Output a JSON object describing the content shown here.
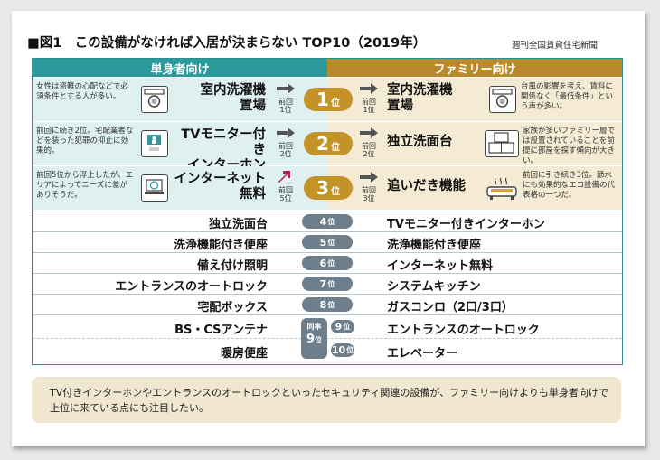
{
  "title": "■図1　この設備がなければ入居が決まらない TOP10（2019年）",
  "source": "週刊全国賃貸住宅新聞",
  "headers": {
    "single": "単身者向け",
    "family": "ファミリー向け"
  },
  "top3": [
    {
      "rank_num": "1",
      "rank_unit": "位",
      "single_note": "女性は盗難の心配などで必須条件とする人が多い。",
      "single_feature_1": "室内洗濯機",
      "single_feature_2": "置場",
      "single_prev_1": "前回",
      "single_prev_2": "1位",
      "single_trend": "same",
      "family_prev_1": "前回",
      "family_prev_2": "1位",
      "family_feature_1": "室内洗濯機",
      "family_feature_2": "置場",
      "family_note": "台風の影響を考え、賃料に関係なく「最低条件」という声が多い。",
      "single_icon": "washing-machine-icon",
      "family_icon": "washing-machine-icon"
    },
    {
      "rank_num": "2",
      "rank_unit": "位",
      "single_note": "前回に続き2位。宅配業者などを装った犯罪の抑止に効果的。",
      "single_feature_1": "TVモニター付き",
      "single_feature_2": "インターホン",
      "single_prev_1": "前回",
      "single_prev_2": "2位",
      "single_trend": "same",
      "family_prev_1": "前回",
      "family_prev_2": "2位",
      "family_feature_1": "独立洗面台",
      "family_feature_2": "",
      "family_note": "家族が多いファミリー層では設置されていることを前提に部屋を探す傾向が大きい。",
      "single_icon": "tv-intercom-icon",
      "family_icon": "vanity-icon"
    },
    {
      "rank_num": "3",
      "rank_unit": "位",
      "single_note": "前回5位から浮上したが、エリアによってニーズに差がありそうだ。",
      "single_feature_1": "インターネット",
      "single_feature_2": "無料",
      "single_prev_1": "前回",
      "single_prev_2": "5位",
      "single_trend": "up",
      "family_prev_1": "前回",
      "family_prev_2": "3位",
      "family_feature_1": "追いだき機能",
      "family_feature_2": "",
      "family_note": "前回に引き続き3位。節水にも効果的なエコ設備の代表格の一つだ。",
      "single_icon": "laptop-icon",
      "family_icon": "bathtub-icon"
    }
  ],
  "rows": [
    {
      "rank": "4",
      "unit": "位",
      "single": "独立洗面台",
      "family": "TVモニター付きインターホン"
    },
    {
      "rank": "5",
      "unit": "位",
      "single": "洗浄機能付き便座",
      "family": "洗浄機能付き便座"
    },
    {
      "rank": "6",
      "unit": "位",
      "single": "備え付け照明",
      "family": "インターネット無料"
    },
    {
      "rank": "7",
      "unit": "位",
      "single": "エントランスのオートロック",
      "family": "システムキッチン"
    },
    {
      "rank": "8",
      "unit": "位",
      "single": "宅配ボックス",
      "family": "ガスコンロ（2口/3口）"
    }
  ],
  "tie": {
    "label": "同率",
    "rank": "9",
    "unit": "位",
    "single_a": "BS・CSアンテナ",
    "single_b": "暖房便座",
    "family_a_rank": "9",
    "family_a": "エントランスのオートロック",
    "family_b_rank": "10",
    "family_b": "エレベーター"
  },
  "comment": "TV付きインターホンやエントランスのオートロックといったセキュリティ関連の設備が、ファミリー向けよりも単身者向けで上位に来ている点にも注目したい。",
  "colors": {
    "single": "#2a9a9c",
    "family": "#b88a2c",
    "medal": "#c39328",
    "pill": "#6d7f8d"
  }
}
